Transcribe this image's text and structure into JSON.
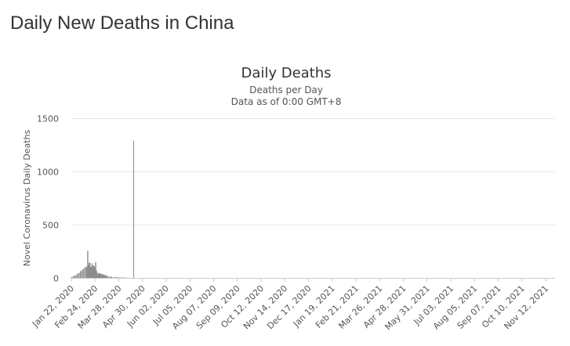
{
  "page": {
    "heading": "Daily New Deaths in China"
  },
  "chart_data": {
    "type": "bar",
    "title": "Daily Deaths",
    "subtitle_lines": [
      "Deaths per Day",
      "Data as of 0:00 GMT+8"
    ],
    "xlabel": "",
    "ylabel": "Novel Coronavirus Daily Deaths",
    "x_start": "2020-01-22",
    "x_end": "2021-11-24",
    "x_tick_labels": [
      "Jan 22, 2020",
      "Feb 24, 2020",
      "Mar 28, 2020",
      "Apr 30, 2020",
      "Jun 02, 2020",
      "Jul 05, 2020",
      "Aug 07, 2020",
      "Sep 09, 2020",
      "Oct 12, 2020",
      "Nov 14, 2020",
      "Dec 17, 2020",
      "Jan 19, 2021",
      "Feb 21, 2021",
      "Mar 26, 2021",
      "Apr 28, 2021",
      "May 31, 2021",
      "Jul 03, 2021",
      "Aug 05, 2021",
      "Sep 07, 2021",
      "Oct 10, 2021",
      "Nov 12, 2021"
    ],
    "y_ticks": [
      0,
      500,
      1000,
      1500
    ],
    "ylim": [
      0,
      1500
    ],
    "grid": true,
    "color": "#8c8c8c",
    "series": [
      {
        "x": [
          "2020-01-22",
          "2020-01-24",
          "2020-01-26",
          "2020-01-28",
          "2020-01-30",
          "2020-02-01",
          "2020-02-03",
          "2020-02-05",
          "2020-02-07",
          "2020-02-09",
          "2020-02-11",
          "2020-02-12",
          "2020-02-13",
          "2020-02-14",
          "2020-02-15",
          "2020-02-16",
          "2020-02-17",
          "2020-02-18",
          "2020-02-19",
          "2020-02-20",
          "2020-02-21",
          "2020-02-22",
          "2020-02-23",
          "2020-02-24",
          "2020-02-25",
          "2020-02-26",
          "2020-02-27",
          "2020-02-28",
          "2020-02-29",
          "2020-03-01",
          "2020-03-02",
          "2020-03-03",
          "2020-03-04",
          "2020-03-05",
          "2020-03-06",
          "2020-03-07",
          "2020-03-08",
          "2020-03-09",
          "2020-03-10",
          "2020-03-11",
          "2020-03-13",
          "2020-03-15",
          "2020-03-17",
          "2020-03-19",
          "2020-03-21",
          "2020-03-23",
          "2020-03-25",
          "2020-03-27",
          "2020-03-29",
          "2020-03-31",
          "2020-04-02",
          "2020-04-04",
          "2020-04-06",
          "2020-04-08",
          "2020-04-10",
          "2020-04-17"
        ],
        "values": [
          8,
          16,
          24,
          26,
          43,
          46,
          64,
          73,
          86,
          97,
          108,
          97,
          254,
          121,
          143,
          142,
          105,
          98,
          136,
          114,
          118,
          109,
          97,
          150,
          71,
          52,
          29,
          44,
          47,
          35,
          42,
          31,
          38,
          31,
          30,
          28,
          27,
          22,
          17,
          22,
          13,
          10,
          13,
          3,
          6,
          9,
          6,
          3,
          5,
          1,
          6,
          4,
          1,
          2,
          1,
          1290
        ]
      }
    ]
  }
}
